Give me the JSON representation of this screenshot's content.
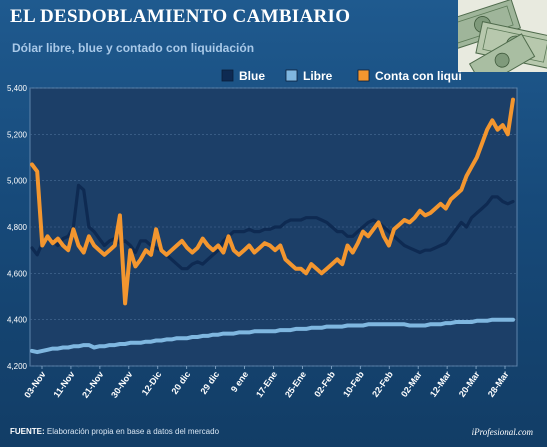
{
  "header": {
    "title": "EL DESDOBLAMIENTO CAMBIARIO",
    "subtitle": "Dólar libre, blue y contado con liquidación"
  },
  "footer": {
    "source_label": "FUENTE:",
    "source_text": "Elaboración propia en base a datos del mercado",
    "brand": "iProfesional.com"
  },
  "watermark": "iProfesional.com",
  "chart_data": {
    "type": "line",
    "title": "",
    "xlabel": "",
    "ylabel": "",
    "ylim": [
      4200,
      5400
    ],
    "y_ticks": [
      "5,400",
      "5,200",
      "5,000",
      "4,800",
      "4,600",
      "4,400",
      "4,200"
    ],
    "y_tick_values": [
      5400,
      5200,
      5000,
      4800,
      4600,
      4400,
      4200
    ],
    "x_tick_labels": [
      "03-Nov",
      "11-Nov",
      "21-Nov",
      "30-Nov",
      "12-Dic",
      "20 dic",
      "29 dic",
      "9 ene",
      "17-Ene",
      "25-Ene",
      "02-Feb",
      "10-Feb",
      "22-Feb",
      "02-Mar",
      "12-Mar",
      "20-Mar",
      "28-Mar"
    ],
    "grid": true,
    "legend_position": "top-right",
    "colors": {
      "Blue": "#0e2a52",
      "Libre": "#7fb7e0",
      "Conta con liqui": "#f3962f"
    },
    "series": [
      {
        "name": "Blue",
        "values": [
          4710,
          4680,
          4730,
          4760,
          4740,
          4720,
          4750,
          4760,
          4800,
          4980,
          4960,
          4800,
          4780,
          4750,
          4720,
          4740,
          4750,
          4730,
          4740,
          4720,
          4690,
          4740,
          4740,
          4720,
          4710,
          4700,
          4680,
          4660,
          4640,
          4620,
          4620,
          4640,
          4650,
          4640,
          4660,
          4680,
          4700,
          4740,
          4760,
          4780,
          4780,
          4780,
          4790,
          4780,
          4780,
          4790,
          4790,
          4800,
          4800,
          4820,
          4830,
          4830,
          4830,
          4840,
          4840,
          4840,
          4830,
          4820,
          4800,
          4780,
          4780,
          4760,
          4760,
          4780,
          4800,
          4820,
          4830,
          4820,
          4800,
          4780,
          4760,
          4740,
          4720,
          4710,
          4700,
          4690,
          4700,
          4700,
          4710,
          4720,
          4730,
          4760,
          4790,
          4820,
          4800,
          4840,
          4860,
          4880,
          4900,
          4930,
          4930,
          4910,
          4900,
          4910
        ]
      },
      {
        "name": "Libre",
        "values": [
          4265,
          4260,
          4265,
          4270,
          4275,
          4275,
          4280,
          4280,
          4285,
          4285,
          4290,
          4290,
          4280,
          4285,
          4285,
          4290,
          4290,
          4295,
          4295,
          4300,
          4300,
          4300,
          4305,
          4305,
          4310,
          4310,
          4315,
          4315,
          4320,
          4320,
          4320,
          4325,
          4325,
          4330,
          4330,
          4335,
          4335,
          4340,
          4340,
          4340,
          4345,
          4345,
          4345,
          4350,
          4350,
          4350,
          4350,
          4350,
          4355,
          4355,
          4355,
          4360,
          4360,
          4360,
          4365,
          4365,
          4365,
          4370,
          4370,
          4370,
          4370,
          4375,
          4375,
          4375,
          4375,
          4380,
          4380,
          4380,
          4380,
          4380,
          4380,
          4380,
          4380,
          4375,
          4375,
          4375,
          4375,
          4380,
          4380,
          4380,
          4385,
          4385,
          4390,
          4390,
          4390,
          4390,
          4395,
          4395,
          4395,
          4400,
          4400,
          4400,
          4400,
          4400
        ]
      },
      {
        "name": "Conta con liqui",
        "values": [
          5070,
          5040,
          4720,
          4760,
          4730,
          4750,
          4720,
          4700,
          4790,
          4720,
          4690,
          4760,
          4720,
          4700,
          4680,
          4700,
          4720,
          4850,
          4470,
          4700,
          4630,
          4660,
          4700,
          4680,
          4790,
          4700,
          4680,
          4700,
          4720,
          4740,
          4710,
          4690,
          4710,
          4750,
          4720,
          4700,
          4720,
          4690,
          4760,
          4700,
          4680,
          4700,
          4720,
          4690,
          4710,
          4730,
          4720,
          4700,
          4720,
          4660,
          4640,
          4620,
          4620,
          4600,
          4640,
          4620,
          4600,
          4620,
          4640,
          4660,
          4640,
          4720,
          4690,
          4730,
          4780,
          4760,
          4790,
          4820,
          4760,
          4720,
          4790,
          4810,
          4830,
          4820,
          4840,
          4870,
          4850,
          4860,
          4880,
          4900,
          4880,
          4920,
          4940,
          4960,
          5020,
          5060,
          5100,
          5160,
          5220,
          5260,
          5220,
          5240,
          5200,
          5350
        ]
      }
    ]
  }
}
